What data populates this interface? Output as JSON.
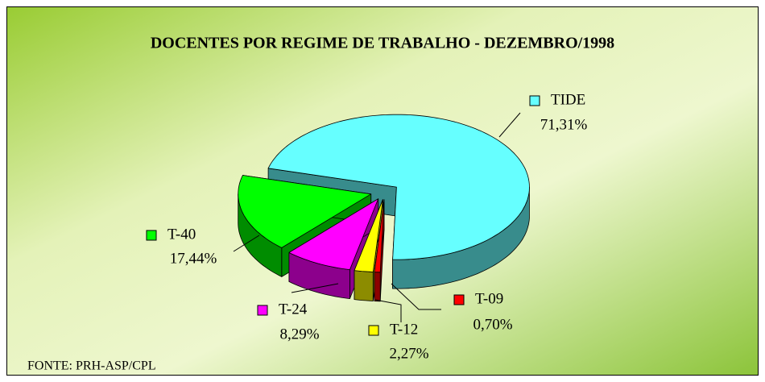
{
  "chart_data": {
    "type": "pie",
    "title": "DOCENTES POR REGIME DE TRABALHO - DEZEMBRO/1998",
    "source": "FONTE: PRH-ASP/CPL",
    "categories": [
      "TIDE",
      "T-09",
      "T-12",
      "T-24",
      "T-40"
    ],
    "values": [
      71.31,
      0.7,
      2.27,
      8.29,
      17.44
    ],
    "value_labels": [
      "71,31%",
      "0,70%",
      "2,27%",
      "8,29%",
      "17,44%"
    ],
    "colors": [
      "#66ffff",
      "#ff0000",
      "#ffff00",
      "#ff00ff",
      "#00ff00"
    ],
    "three_d": true
  }
}
